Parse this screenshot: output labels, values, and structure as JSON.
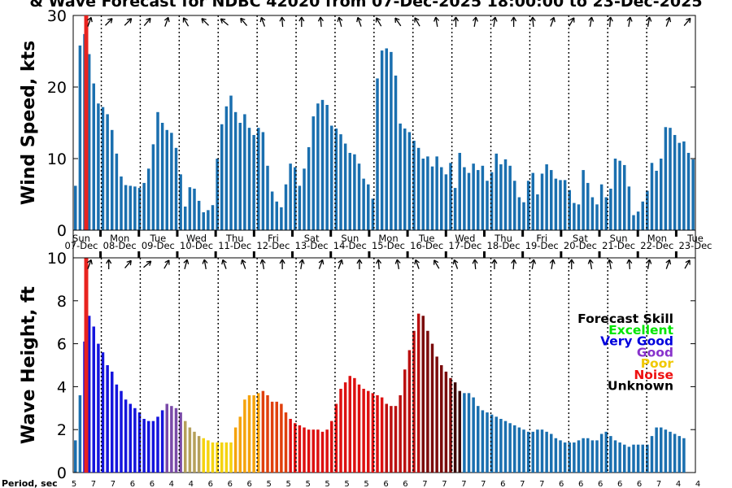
{
  "title": "& Wave Forecast for NDBC 42020 from 07-Dec-2025 18:00:00 to 23-Dec-2025",
  "colors": {
    "blue": "#1a6faf",
    "red_marker": "#e8231f"
  },
  "chart_data": [
    {
      "type": "bar",
      "ylabel": "Wind Speed, kts",
      "ylim": [
        0,
        30
      ],
      "yticks": [
        0,
        10,
        20,
        30
      ],
      "values": [
        6.2,
        25.8,
        27.4,
        24.6,
        20.5,
        17.7,
        17.2,
        16.2,
        14.0,
        10.7,
        7.5,
        6.3,
        6.2,
        6.1,
        5.9,
        6.6,
        8.6,
        12.0,
        16.5,
        15.0,
        14.0,
        13.6,
        11.5,
        7.8,
        3.3,
        6.0,
        5.8,
        4.1,
        2.5,
        2.8,
        3.5,
        10.0,
        14.8,
        17.3,
        18.8,
        16.5,
        15.0,
        16.2,
        14.3,
        13.3,
        14.3,
        13.7,
        9.0,
        5.4,
        4.0,
        3.2,
        6.4,
        9.3,
        8.8,
        6.2,
        8.6,
        11.6,
        15.9,
        17.7,
        18.2,
        17.5,
        14.6,
        14.2,
        13.4,
        12.1,
        10.8,
        10.6,
        9.3,
        7.2,
        6.4,
        4.4,
        21.2,
        25.1,
        25.4,
        24.9,
        21.6,
        14.9,
        14.2,
        13.7,
        12.5,
        11.5,
        10.0,
        10.3,
        8.9,
        10.3,
        8.8,
        7.8,
        9.4,
        5.9,
        10.8,
        8.8,
        8.0,
        9.3,
        8.4,
        9.0,
        6.9,
        8.1,
        10.7,
        9.2,
        9.9,
        9.0,
        6.9,
        4.6,
        3.9,
        6.9,
        8.0,
        5.0,
        7.9,
        9.2,
        8.4,
        7.2,
        7.0,
        7.0,
        5.6,
        3.8,
        3.6,
        8.4,
        6.6,
        4.6,
        3.6,
        6.4,
        4.6,
        5.8,
        10.0,
        9.7,
        9.1,
        6.1,
        2.1,
        2.6,
        4.0,
        5.5,
        9.4,
        8.3,
        10.0,
        14.4,
        14.3,
        13.3,
        12.2,
        12.4,
        10.8,
        9.9
      ],
      "vlines": [
        1,
        2,
        3,
        4,
        5,
        6,
        7,
        8,
        9,
        10,
        11,
        12,
        13,
        14,
        15
      ],
      "day_labels": [
        "Sun",
        "Mon",
        "Tue",
        "Wed",
        "Thu",
        "Fri",
        "Sat",
        "Sun",
        "Mon",
        "Tue",
        "Wed",
        "Thu",
        "Fri",
        "Sat",
        "Sun",
        "Mon",
        "Tue"
      ],
      "date_labels": [
        "07-Dec",
        "08-Dec",
        "09-Dec",
        "10-Dec",
        "11-Dec",
        "12-Dec",
        "13-Dec",
        "14-Dec",
        "15-Dec",
        "16-Dec",
        "17-Dec",
        "18-Dec",
        "19-Dec",
        "20-Dec",
        "21-Dec",
        "22-Dec",
        "23-Dec"
      ]
    },
    {
      "type": "bar",
      "ylabel": "Wave Height, ft",
      "ylim": [
        0,
        10
      ],
      "yticks": [
        0,
        2,
        4,
        6,
        8,
        10
      ],
      "values": [
        1.5,
        3.6,
        6.1,
        7.3,
        6.8,
        6.0,
        5.6,
        5.0,
        4.7,
        4.1,
        3.8,
        3.4,
        3.2,
        3.0,
        2.8,
        2.5,
        2.4,
        2.4,
        2.6,
        2.9,
        3.2,
        3.1,
        3.0,
        2.8,
        2.4,
        2.1,
        1.9,
        1.7,
        1.6,
        1.5,
        1.4,
        1.4,
        1.4,
        1.4,
        1.4,
        2.1,
        2.6,
        3.4,
        3.6,
        3.6,
        3.7,
        3.8,
        3.6,
        3.3,
        3.3,
        3.2,
        2.8,
        2.5,
        2.3,
        2.2,
        2.1,
        2.0,
        2.0,
        2.0,
        1.9,
        2.0,
        2.4,
        3.2,
        3.9,
        4.2,
        4.5,
        4.4,
        4.1,
        3.9,
        3.8,
        3.7,
        3.6,
        3.5,
        3.2,
        3.1,
        3.1,
        3.6,
        4.8,
        5.7,
        6.6,
        7.4,
        7.3,
        6.6,
        6.0,
        5.4,
        5.0,
        4.7,
        4.4,
        4.2,
        3.8,
        3.7,
        3.7,
        3.5,
        3.1,
        2.9,
        2.8,
        2.7,
        2.6,
        2.5,
        2.4,
        2.3,
        2.2,
        2.1,
        2.0,
        1.9,
        1.9,
        2.0,
        2.0,
        1.9,
        1.8,
        1.6,
        1.5,
        1.4,
        1.4,
        1.4,
        1.5,
        1.6,
        1.6,
        1.5,
        1.5,
        1.8,
        1.9,
        1.7,
        1.5,
        1.4,
        1.3,
        1.2,
        1.3,
        1.3,
        1.3,
        1.3,
        1.7,
        2.1,
        2.1,
        2.0,
        1.9,
        1.8,
        1.7,
        1.6
      ],
      "colors": [
        {
          "from": 0,
          "to": 1,
          "color": "#1a6faf"
        },
        {
          "from": 2,
          "to": 19,
          "color": "#1414dd"
        },
        {
          "from": 20,
          "to": 23,
          "color": "#7a4aa8"
        },
        {
          "from": 24,
          "to": 27,
          "color": "#b5a05a"
        },
        {
          "from": 28,
          "to": 34,
          "color": "#f5d30f"
        },
        {
          "from": 35,
          "to": 40,
          "color": "#f5a30c"
        },
        {
          "from": 41,
          "to": 46,
          "color": "#e0400c"
        },
        {
          "from": 47,
          "to": 67,
          "color": "#dd1010"
        },
        {
          "from": 68,
          "to": 75,
          "color": "#bb1010"
        },
        {
          "from": 76,
          "to": 82,
          "color": "#7b0b0b"
        },
        {
          "from": 83,
          "to": 84,
          "color": "#3a0606"
        },
        {
          "from": 85,
          "to": 135,
          "color": "#1a6faf"
        }
      ],
      "legend_title": "Forecast Skill",
      "legend": [
        {
          "label": "Excellent",
          "color": "#00e600"
        },
        {
          "label": "Very Good",
          "color": "#0000dd"
        },
        {
          "label": "Good",
          "color": "#8833cc"
        },
        {
          "label": "Poor",
          "color": "#f0c800"
        },
        {
          "label": "Noise",
          "color": "#ee1111"
        },
        {
          "label": "Unknown",
          "color": "#000000"
        }
      ]
    }
  ],
  "period": {
    "label": "Period, sec",
    "values": [
      "5",
      "7",
      "7",
      "6",
      "6",
      "4",
      "4",
      "6",
      "6",
      "6",
      "5",
      "5",
      "5",
      "5",
      "5",
      "5",
      "6",
      "6",
      "7",
      "7",
      "7",
      "7",
      "6",
      "7",
      "7",
      "6",
      "6",
      "6",
      "6",
      "6",
      "7",
      "4",
      "4"
    ]
  },
  "arrows": {
    "wind": [
      200,
      225,
      225,
      220,
      200,
      150,
      135,
      130,
      140,
      160,
      175,
      180,
      175,
      165,
      160,
      150,
      145,
      150,
      170,
      180,
      190,
      190,
      180,
      175,
      200,
      210,
      190,
      185,
      190,
      190,
      200,
      220
    ],
    "wave": [
      200,
      180,
      220,
      230,
      210,
      195,
      170,
      160,
      160,
      170,
      180,
      190,
      200,
      200,
      180,
      175,
      170,
      160,
      150,
      160,
      175,
      180,
      185,
      190,
      190,
      180,
      170,
      170,
      175,
      190,
      200,
      210
    ]
  }
}
